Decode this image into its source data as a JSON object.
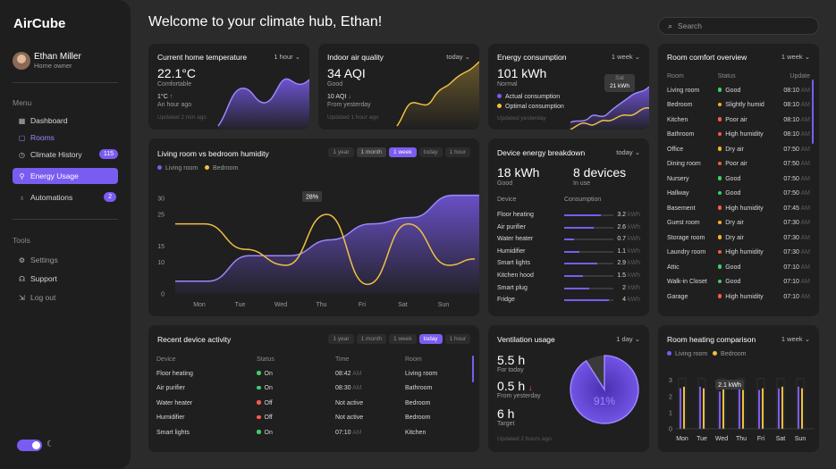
{
  "app": {
    "brand": "AirCube",
    "page_title": "Welcome to your climate hub, Ethan!",
    "search_placeholder": "Search"
  },
  "user": {
    "name": "Ethan Miller",
    "role": "Home owner"
  },
  "menu": {
    "section": "Menu",
    "items": [
      {
        "label": "Dashboard"
      },
      {
        "label": "Rooms"
      },
      {
        "label": "Climate History",
        "badge": "115"
      },
      {
        "label": "Energy Usage"
      },
      {
        "label": "Automations",
        "badge": "2"
      }
    ]
  },
  "tools": {
    "section": "Tools",
    "items": [
      {
        "label": "Settings"
      },
      {
        "label": "Support"
      },
      {
        "label": "Log out"
      }
    ]
  },
  "temp": {
    "title": "Current home temperature",
    "range": "1 hour",
    "value": "22.1°C",
    "status": "Comfortable",
    "delta": "1°C",
    "delta_note": "An hour ago",
    "updated": "Updated 2 min ago"
  },
  "air": {
    "title": "Indoor air quality",
    "range": "today",
    "value": "34 AQI",
    "status": "Good",
    "delta": "10 AQI",
    "delta_note": "From yesterday",
    "updated": "Updated 1 hour ago"
  },
  "energy": {
    "title": "Energy consumption",
    "range": "1 week",
    "value": "101 kWh",
    "status": "Normal",
    "legend_actual": "Actual consumption",
    "legend_optimal": "Optimal consumption",
    "updated": "Updated yesterday",
    "tooltip_day": "Sat",
    "tooltip_value": "21 kWh"
  },
  "humidity": {
    "title": "Living room vs bedroom humidity",
    "filters": [
      "1 year",
      "1 month",
      "1 week",
      "today",
      "1 hour"
    ],
    "legend": [
      "Living room",
      "Bedroom"
    ],
    "tooltip": "28%"
  },
  "chart_data": {
    "type": "line",
    "categories": [
      "Mon",
      "Tue",
      "Wed",
      "Thu",
      "Fri",
      "Sat",
      "Sun"
    ],
    "ylim": [
      0,
      32
    ],
    "yticks": [
      "30",
      "25",
      "15",
      "10",
      "0"
    ],
    "series": [
      {
        "name": "Living room",
        "values": [
          4,
          12,
          12,
          17,
          22,
          24,
          31
        ]
      },
      {
        "name": "Bedroom",
        "values": [
          22,
          14,
          9,
          25,
          3,
          22,
          9
        ]
      }
    ]
  },
  "breakdown": {
    "title": "Device energy breakdown",
    "range": "today",
    "total": "18 kWh",
    "total_status": "Good",
    "devices": "8 devices",
    "devices_status": "In use",
    "col_device": "Device",
    "col_consumption": "Consumption",
    "rows": [
      {
        "name": "Floor heating",
        "value": "3.2",
        "fill": 0.75
      },
      {
        "name": "Air purifier",
        "value": "2.6",
        "fill": 0.6
      },
      {
        "name": "Water heater",
        "value": "0.7",
        "fill": 0.2
      },
      {
        "name": "Humidifier",
        "value": "1.1",
        "fill": 0.3
      },
      {
        "name": "Smart lights",
        "value": "2.9",
        "fill": 0.68
      },
      {
        "name": "Kitchen hood",
        "value": "1.5",
        "fill": 0.38
      },
      {
        "name": "Smart plug",
        "value": "2",
        "fill": 0.5
      },
      {
        "name": "Fridge",
        "value": "4",
        "fill": 0.9
      }
    ],
    "unit": "kWh"
  },
  "comfort": {
    "title": "Room comfort overview",
    "range": "1 week",
    "headers": [
      "Room",
      "Status",
      "Update"
    ],
    "rows": [
      {
        "room": "Living room",
        "status": "Good",
        "c": "g",
        "time": "08:10",
        "ampm": "AM"
      },
      {
        "room": "Bedroom",
        "status": "Slightly humid",
        "c": "o",
        "time": "08:10",
        "ampm": "AM"
      },
      {
        "room": "Kitchen",
        "status": "Poor air",
        "c": "r",
        "time": "08:10",
        "ampm": "AM"
      },
      {
        "room": "Bathroom",
        "status": "High humidity",
        "c": "r",
        "time": "08:10",
        "ampm": "AM"
      },
      {
        "room": "Office",
        "status": "Dry air",
        "c": "o",
        "time": "07:50",
        "ampm": "AM"
      },
      {
        "room": "Dining room",
        "status": "Poor air",
        "c": "r",
        "time": "07:50",
        "ampm": "AM"
      },
      {
        "room": "Nursery",
        "status": "Good",
        "c": "g",
        "time": "07:50",
        "ampm": "AM"
      },
      {
        "room": "Hallway",
        "status": "Good",
        "c": "g",
        "time": "07:50",
        "ampm": "AM"
      },
      {
        "room": "Basement",
        "status": "High humidity",
        "c": "r",
        "time": "07:45",
        "ampm": "AM"
      },
      {
        "room": "Guest room",
        "status": "Dry air",
        "c": "o",
        "time": "07:30",
        "ampm": "AM"
      },
      {
        "room": "Storage room",
        "status": "Dry air",
        "c": "o",
        "time": "07:30",
        "ampm": "AM"
      },
      {
        "room": "Laundry room",
        "status": "High humidity",
        "c": "r",
        "time": "07:30",
        "ampm": "AM"
      },
      {
        "room": "Attic",
        "status": "Good",
        "c": "g",
        "time": "07:10",
        "ampm": "AM"
      },
      {
        "room": "Walk-in Closet",
        "status": "Good",
        "c": "g",
        "time": "07:10",
        "ampm": "AM"
      },
      {
        "room": "Garage",
        "status": "High humidity",
        "c": "r",
        "time": "07:10",
        "ampm": "AM"
      }
    ]
  },
  "activity": {
    "title": "Recent device activity",
    "filters": [
      "1 year",
      "1 month",
      "1 week",
      "today",
      "1 hour"
    ],
    "headers": [
      "Device",
      "Status",
      "Time",
      "Room"
    ],
    "rows": [
      {
        "device": "Floor heating",
        "status": "On",
        "c": "g",
        "time": "08:42",
        "ampm": "AM",
        "room": "Living room"
      },
      {
        "device": "Air purifier",
        "status": "On",
        "c": "g",
        "time": "08:30",
        "ampm": "AM",
        "room": "Bathroom"
      },
      {
        "device": "Water heater",
        "status": "Off",
        "c": "r",
        "time": "Not active",
        "ampm": "",
        "room": "Bedroom"
      },
      {
        "device": "Humidifier",
        "status": "Off",
        "c": "r",
        "time": "Not active",
        "ampm": "",
        "room": "Bedroom"
      },
      {
        "device": "Smart lights",
        "status": "On",
        "c": "g",
        "time": "07:10",
        "ampm": "AM",
        "room": "Kitchen"
      }
    ]
  },
  "ventilation": {
    "title": "Ventilation usage",
    "range": "1 day",
    "today": "5.5 h",
    "today_note": "For today",
    "yday": "0.5 h",
    "yday_note": "From yesterday",
    "target": "6 h",
    "target_note": "Target",
    "updated": "Updated 2 hours ago",
    "percent": "91%",
    "fraction": 0.91
  },
  "heating": {
    "title": "Room heating comparison",
    "range": "1 week",
    "legend": [
      "Living room",
      "Bedroom"
    ],
    "tooltip": "2.1 kWh",
    "days": [
      "Mon",
      "Tue",
      "Wed",
      "Thu",
      "Fri",
      "Sat",
      "Sun"
    ],
    "yticks": [
      "3",
      "2",
      "1",
      "0"
    ],
    "living": [
      2.5,
      2.6,
      2.3,
      2.5,
      2.4,
      2.5,
      2.6
    ],
    "bedroom": [
      2.6,
      2.5,
      2.6,
      2.4,
      2.5,
      2.6,
      2.5
    ]
  },
  "colors": {
    "accent": "#7b5cf0",
    "yellow": "#f0c040",
    "green": "#3fcf6a",
    "orange": "#ffb020",
    "red": "#ff5a4a"
  }
}
